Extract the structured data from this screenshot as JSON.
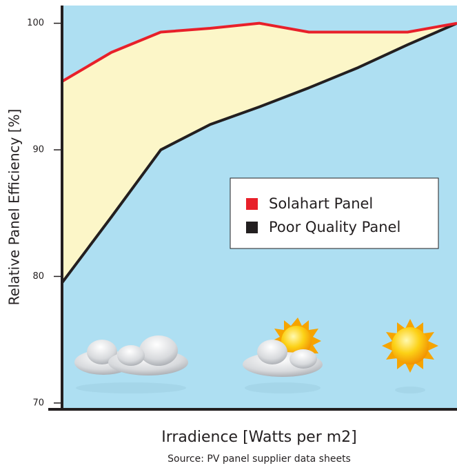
{
  "chart_data": {
    "type": "line",
    "ylabel": "Relative Panel Efficiency [%]",
    "xlabel": "Irradience [Watts per m2]",
    "source": "Source: PV panel supplier data sheets",
    "categories": [
      null,
      null,
      null,
      null,
      null,
      null,
      null,
      null,
      null
    ],
    "series": [
      {
        "name": "Solahart Panel",
        "color": "#e8202a",
        "values": [
          95.4,
          97.7,
          99.3,
          99.6,
          100,
          99.3,
          99.3,
          99.3,
          100
        ]
      },
      {
        "name": "Poor Quality Panel",
        "color": "#231f20",
        "values": [
          79.5,
          84.7,
          90,
          92,
          93.4,
          94.9,
          96.5,
          98.3,
          100
        ]
      }
    ],
    "ylim": [
      69.5,
      101.4
    ],
    "yticks": [
      70,
      80,
      90,
      100
    ],
    "background": "#aedff2",
    "fill_between_color": "#fcf6c8",
    "legend": "center-right"
  }
}
